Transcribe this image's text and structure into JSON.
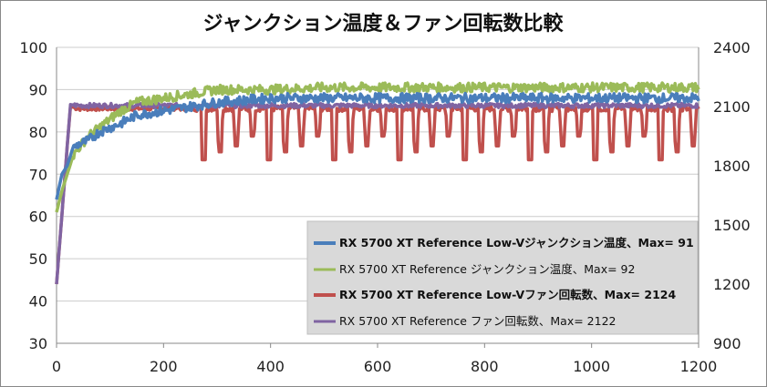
{
  "chart_data": {
    "type": "line",
    "title": "ジャンクション温度＆ファン回転数比較",
    "xlim": [
      0,
      1200
    ],
    "x_ticks": [
      0,
      200,
      400,
      600,
      800,
      1000,
      1200
    ],
    "y_left_lim": [
      30,
      100
    ],
    "y_left_ticks": [
      30,
      40,
      50,
      60,
      70,
      80,
      90,
      100
    ],
    "y_right_lim": [
      900,
      2400
    ],
    "y_right_ticks": [
      900,
      1200,
      1500,
      1800,
      2100,
      2400
    ],
    "grid": "horizontal",
    "legend_position": "bottom-right",
    "series": [
      {
        "name": "RX 5700 XT Reference Low-Vジャンクション温度、Max= 91",
        "axis": "left",
        "color": "#4a7ebb",
        "x": [
          0,
          10,
          20,
          30,
          40,
          60,
          80,
          100,
          120,
          150,
          200,
          250,
          300,
          400,
          500,
          600,
          700,
          800,
          900,
          1000,
          1100,
          1200
        ],
        "values": [
          64,
          70,
          72,
          76,
          77,
          78,
          80,
          81,
          82,
          84,
          85,
          86,
          87,
          88,
          88,
          88,
          88,
          88,
          88,
          88,
          88,
          88
        ]
      },
      {
        "name": "RX 5700 XT Reference ジャンクション温度、Max= 92",
        "axis": "left",
        "color": "#9bbb59",
        "x": [
          0,
          10,
          20,
          30,
          40,
          60,
          80,
          100,
          120,
          150,
          200,
          250,
          300,
          400,
          500,
          600,
          700,
          800,
          900,
          1000,
          1100,
          1200
        ],
        "values": [
          61,
          66,
          70,
          74,
          76,
          79,
          81,
          83,
          85,
          87,
          88,
          89,
          90,
          90,
          90.5,
          90.5,
          90.5,
          90.5,
          90.5,
          90.5,
          90.5,
          90.5
        ]
      },
      {
        "name": "RX 5700 XT Reference Low-Vファン回転数、Max= 2124",
        "axis": "right",
        "color": "#c0504d",
        "x": [
          0,
          10,
          20,
          26,
          40,
          100,
          200,
          250,
          1200
        ],
        "values": [
          1200,
          1550,
          1900,
          2100,
          2090,
          2090,
          2090,
          2090,
          2090
        ],
        "dips": {
          "start": 260,
          "period": 30.5,
          "depth_rpm": [
            1830,
            1870,
            1900,
            1950
          ],
          "baseline_rpm": 2090
        }
      },
      {
        "name": "RX 5700 XT Reference ファン回転数、Max= 2122",
        "axis": "right",
        "color": "#8064a2",
        "x": [
          0,
          10,
          20,
          26,
          40,
          200,
          400,
          600,
          800,
          1000,
          1200
        ],
        "values": [
          1200,
          1550,
          1900,
          2110,
          2105,
          2105,
          2105,
          2105,
          2105,
          2105,
          2105
        ]
      }
    ]
  }
}
